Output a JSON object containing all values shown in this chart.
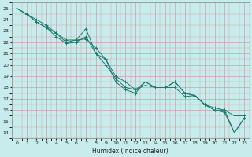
{
  "xlabel": "Humidex (Indice chaleur)",
  "xlim": [
    -0.5,
    23.5
  ],
  "ylim": [
    13.5,
    25.5
  ],
  "yticks": [
    14,
    15,
    16,
    17,
    18,
    19,
    20,
    21,
    22,
    23,
    24,
    25
  ],
  "xticks": [
    0,
    1,
    2,
    3,
    4,
    5,
    6,
    7,
    8,
    9,
    10,
    11,
    12,
    13,
    14,
    15,
    16,
    17,
    18,
    19,
    20,
    21,
    22,
    23
  ],
  "line_color": "#1b7a6d",
  "bg_color": "#c8ecec",
  "grid_major_color": "#c8a0a8",
  "grid_minor_color": "#c8a0a8",
  "lines": [
    [
      25.0,
      24.5,
      24.0,
      23.5,
      22.8,
      22.2,
      22.2,
      22.3,
      21.5,
      20.5,
      19.0,
      18.5,
      17.8,
      18.5,
      18.0,
      18.0,
      18.5,
      17.5,
      17.3,
      16.5,
      16.2,
      16.0,
      15.5,
      15.5
    ],
    [
      25.0,
      24.5,
      23.8,
      23.3,
      22.5,
      21.9,
      22.0,
      22.5,
      21.0,
      20.0,
      18.8,
      18.0,
      17.8,
      18.2,
      18.0,
      18.0,
      18.0,
      17.2,
      17.3,
      16.5,
      16.0,
      16.0,
      14.0,
      15.3
    ],
    [
      25.0,
      24.5,
      23.8,
      23.3,
      22.8,
      22.0,
      22.2,
      23.2,
      21.0,
      20.5,
      18.5,
      17.8,
      17.5,
      18.5,
      18.0,
      18.0,
      18.5,
      17.5,
      17.3,
      16.5,
      16.0,
      15.8,
      14.0,
      15.3
    ]
  ]
}
